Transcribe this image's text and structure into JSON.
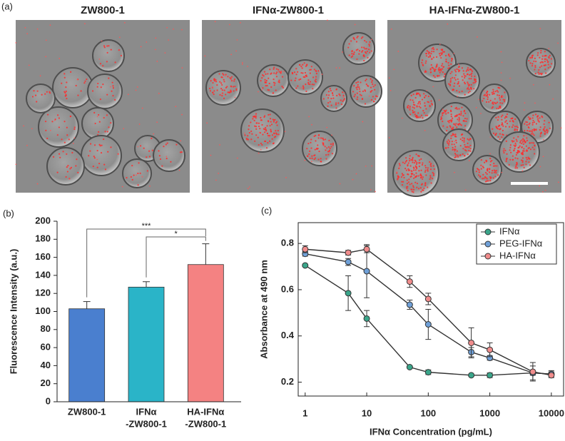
{
  "figure": {
    "panel_label": "(a)",
    "images": [
      {
        "title": "ZW800-1"
      },
      {
        "title": "IFNα-ZW800-1"
      },
      {
        "title": "HA-IFNα-ZW800-1"
      }
    ]
  },
  "chart_data": [
    {
      "type": "bar",
      "panel_label": "(b)",
      "ylabel": "Fluorescence Intensity (a.u.)",
      "categories": [
        [
          "ZW800-1"
        ],
        [
          "IFNα",
          "-ZW800-1"
        ],
        [
          "HA-IFNα",
          "-ZW800-1"
        ]
      ],
      "values": [
        103,
        127,
        152
      ],
      "errors": [
        8,
        6,
        23
      ],
      "colors": [
        "#4a7fcf",
        "#2ab4c8",
        "#f48282"
      ],
      "ylim": [
        0,
        200
      ],
      "yticks": [
        0,
        20,
        40,
        60,
        80,
        100,
        120,
        140,
        160,
        180,
        200
      ],
      "annotations": [
        {
          "from": 0,
          "to": 2,
          "label": "***"
        },
        {
          "from": 1,
          "to": 2,
          "label": "*"
        }
      ]
    },
    {
      "type": "line",
      "panel_label": "(c)",
      "xlabel": "IFNα Concentration (pg/mL)",
      "ylabel": "Absorbance at 490 nm",
      "xscale": "log",
      "legend": "upper right",
      "x": [
        1,
        5,
        10,
        50,
        100,
        500,
        1000,
        5000,
        10000
      ],
      "xlim": [
        0.77,
        15800
      ],
      "xticks": [
        1,
        10,
        100,
        1000,
        10000
      ],
      "ylim": [
        0.14,
        0.89
      ],
      "yticks": [
        0.2,
        0.4,
        0.6,
        0.8
      ],
      "series": [
        {
          "name": "IFNα",
          "color": "#3aa58a",
          "values": [
            0.705,
            0.585,
            0.475,
            0.265,
            0.243,
            0.23,
            0.23,
            0.24,
            0.235
          ],
          "errors": [
            0.005,
            0.075,
            0.035,
            0.005,
            0.01,
            0.005,
            0.01,
            0.01,
            0.01
          ]
        },
        {
          "name": "PEG-IFNα",
          "color": "#6fa0d8",
          "values": [
            0.755,
            0.72,
            0.68,
            0.535,
            0.45,
            0.33,
            0.305,
            0.24,
            0.235
          ],
          "errors": [
            0.01,
            0.015,
            0.115,
            0.02,
            0.065,
            0.02,
            0.01,
            0.03,
            0.015
          ]
        },
        {
          "name": "HA-IFNα",
          "color": "#f08c8c",
          "values": [
            0.775,
            0.76,
            0.775,
            0.635,
            0.56,
            0.37,
            0.34,
            0.245,
            0.23
          ],
          "errors": [
            0.015,
            0.01,
            0.015,
            0.025,
            0.025,
            0.065,
            0.03,
            0.04,
            0.01
          ]
        }
      ]
    }
  ]
}
